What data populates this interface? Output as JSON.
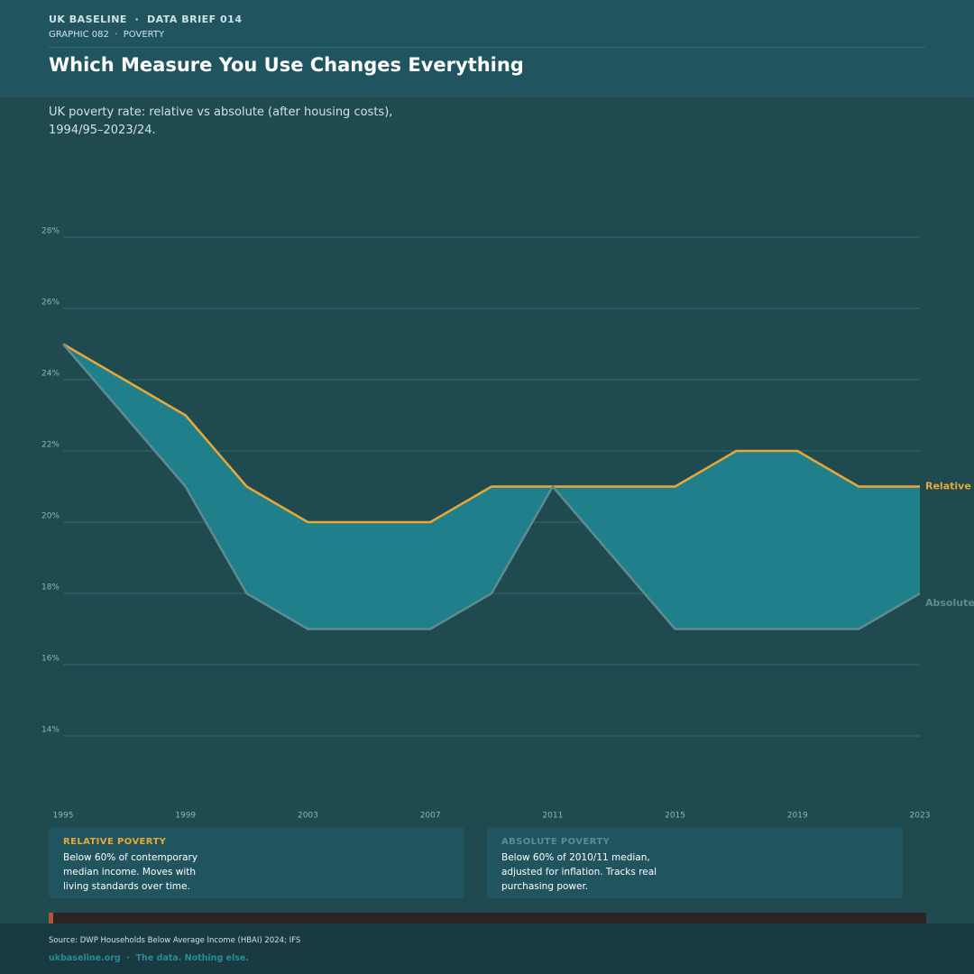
{
  "header": {
    "kicker": "UK BASELINE  ·  DATA BRIEF 014",
    "section": "GRAPHIC 082  ·  POVERTY",
    "title": "Which Measure You Use Changes Everything",
    "subtitle": "UK poverty rate: relative vs absolute (after housing costs), 1994/95–2023/24."
  },
  "chart_data": {
    "type": "line",
    "x": [
      1995,
      1997,
      1999,
      2001,
      2003,
      2005,
      2007,
      2009,
      2011,
      2013,
      2015,
      2017,
      2019,
      2021,
      2023
    ],
    "series": [
      {
        "name": "Relative",
        "color": "#e8a838",
        "values": [
          25,
          24,
          23,
          21,
          20,
          20,
          20,
          21,
          21,
          21,
          21,
          22,
          22,
          21,
          21
        ]
      },
      {
        "name": "Absolute",
        "color": "#5f8a90",
        "values": [
          25,
          23,
          21,
          18,
          17,
          17,
          17,
          18,
          21,
          19,
          17,
          17,
          17,
          17,
          18
        ]
      }
    ],
    "fill_between": "#1f7f8a",
    "xlim": [
      1995,
      2023
    ],
    "xticks": [
      1995,
      1999,
      2003,
      2007,
      2011,
      2015,
      2019,
      2023
    ],
    "ylim": [
      14,
      28
    ],
    "yticks": [
      {
        "value": 14,
        "label": "14%"
      },
      {
        "value": 16,
        "label": "16%"
      },
      {
        "value": 18,
        "label": "18%"
      },
      {
        "value": 20,
        "label": "20%"
      },
      {
        "value": 22,
        "label": "22%"
      },
      {
        "value": 24,
        "label": "24%"
      },
      {
        "value": 26,
        "label": "26%"
      },
      {
        "value": 28,
        "label": "28%"
      }
    ],
    "grid": true
  },
  "cards": [
    {
      "title": "RELATIVE POVERTY",
      "text": "Below 60% of contemporary median income. Moves with living standards over time."
    },
    {
      "title": "ABSOLUTE POVERTY",
      "text": "Below 60% of 2010/11 median, adjusted for inflation. Tracks real purchasing power."
    }
  ],
  "footer": {
    "source": "Source: DWP Households Below Average Income (HBAI) 2024; IFS",
    "site": "ukbaseline.org  ·  The data. Nothing else."
  }
}
